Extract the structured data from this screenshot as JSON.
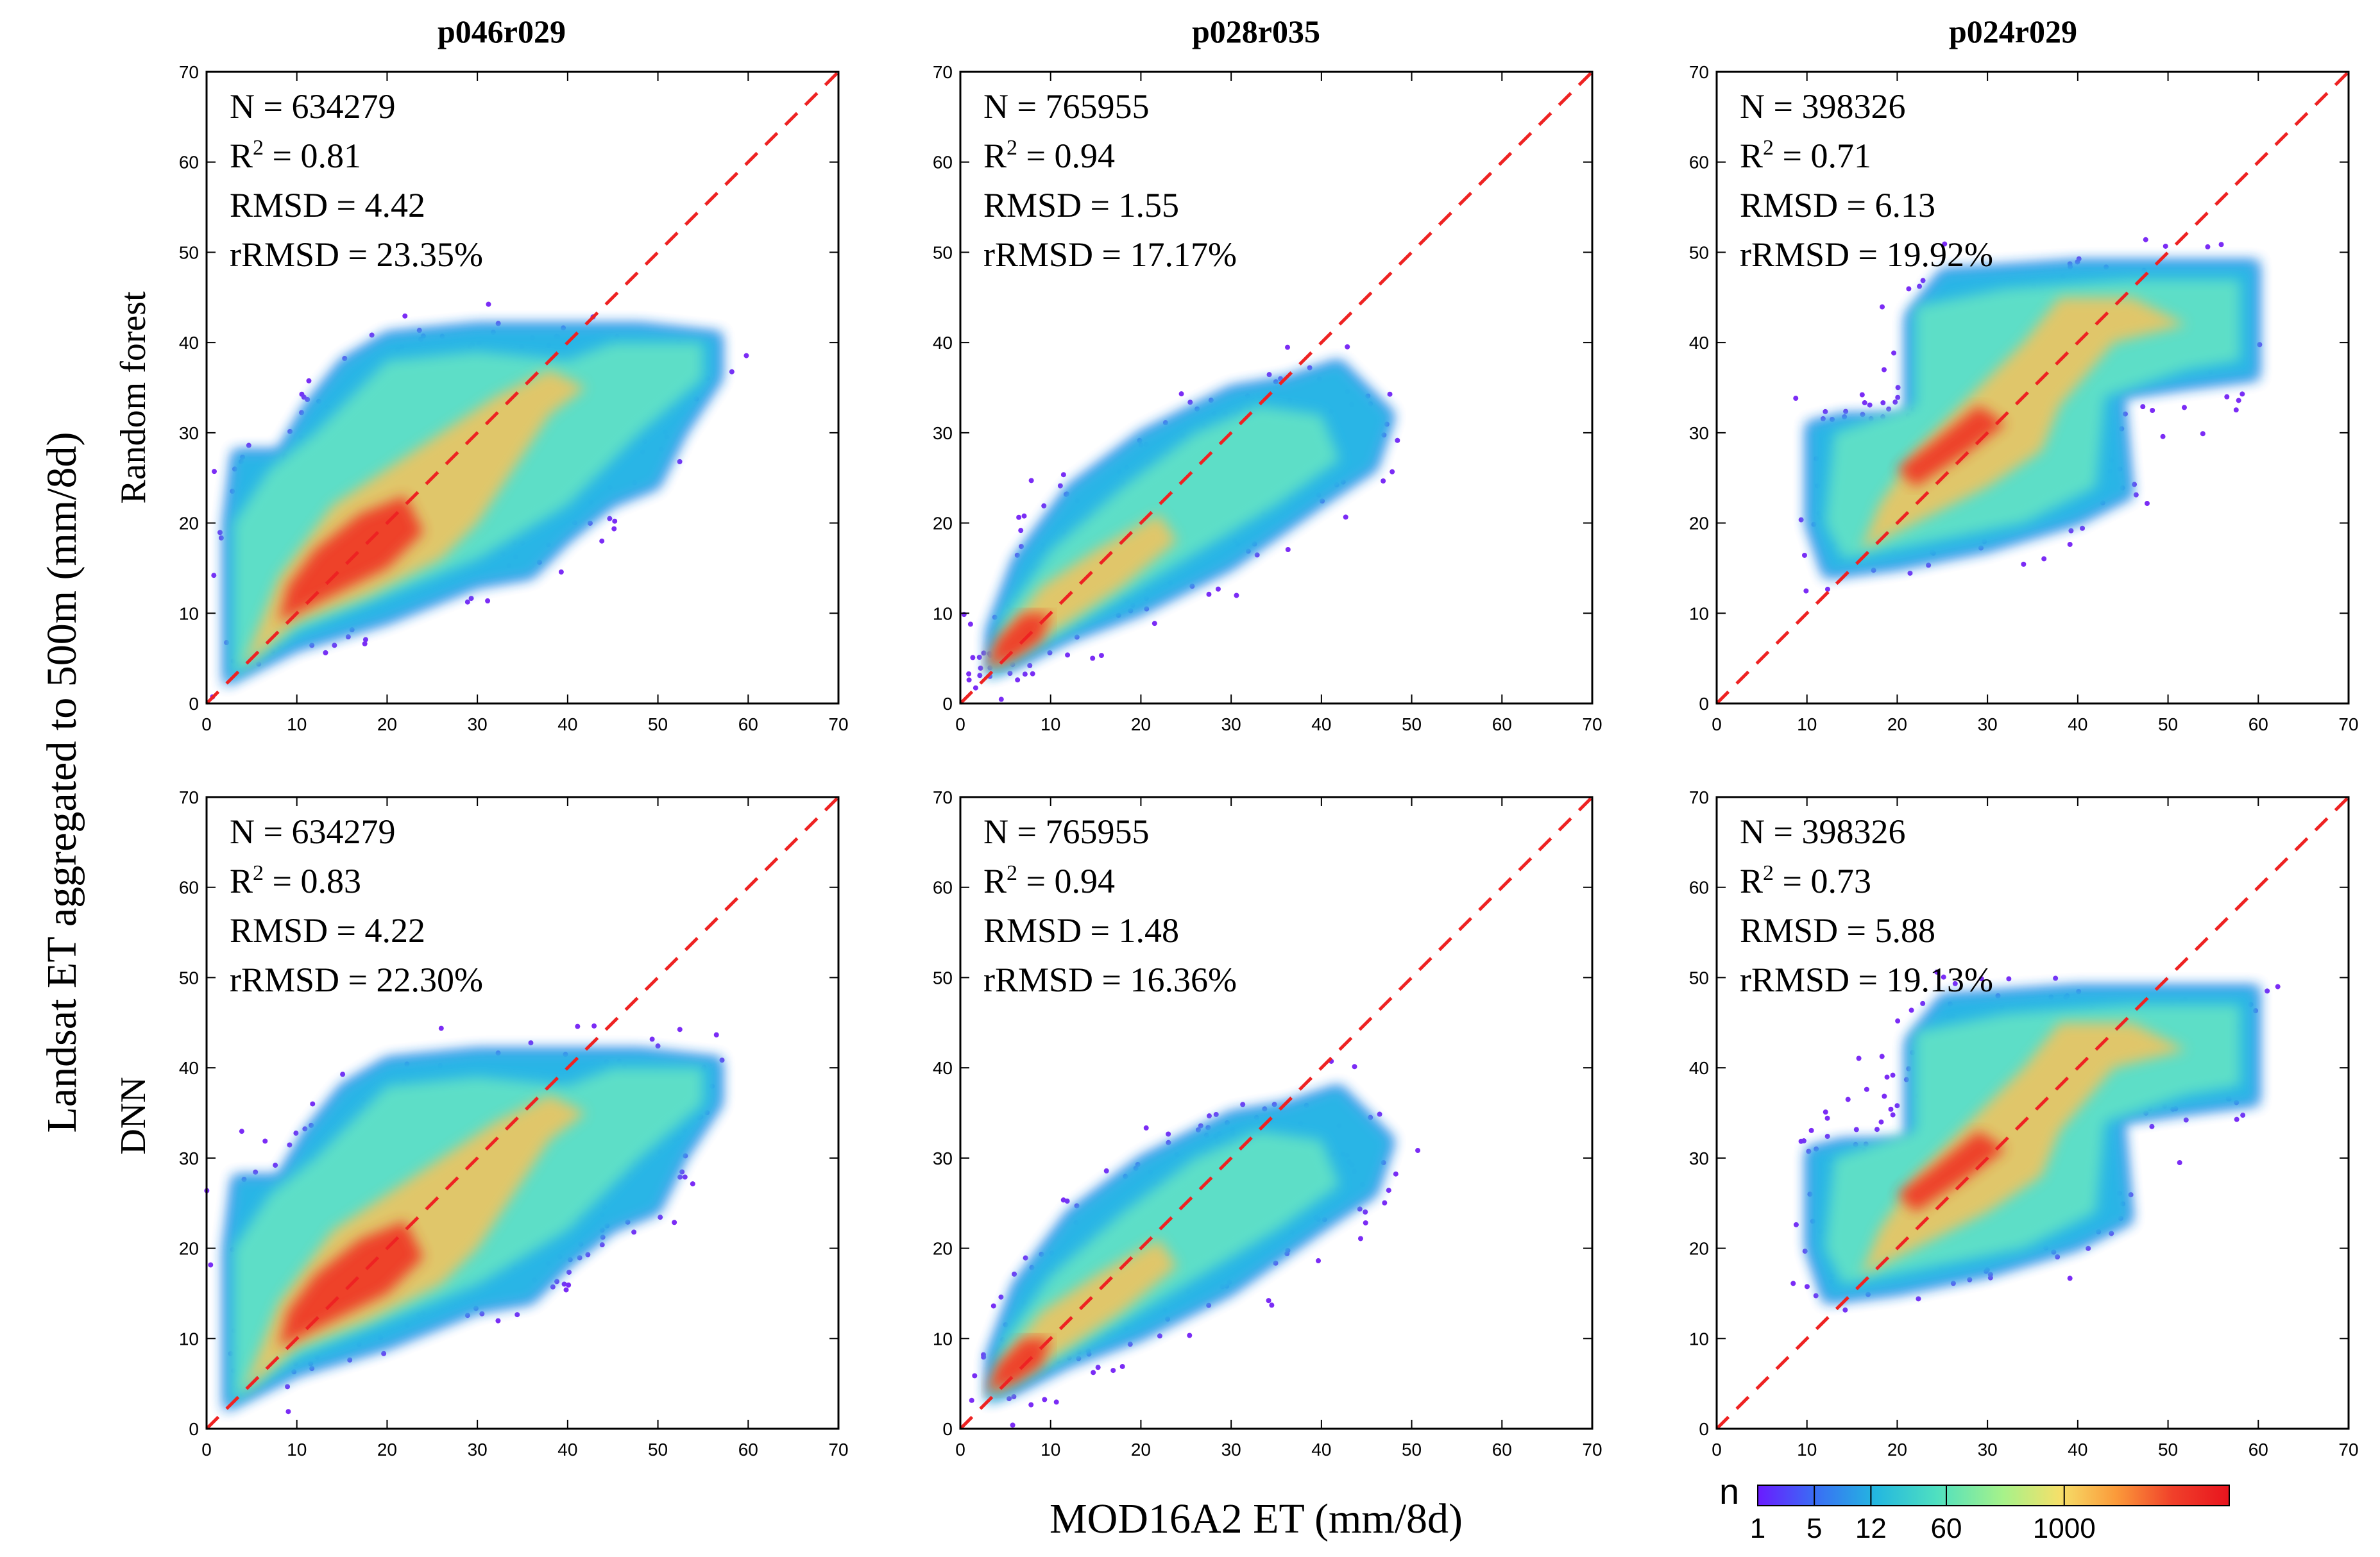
{
  "figure": {
    "ylabel": "Landsat ET aggregated to 500m (mm/8d)",
    "xlabel": "MOD16A2 ET (mm/8d)",
    "columns": [
      "p046r029",
      "p028r035",
      "p024r029"
    ],
    "rows": [
      "Random forest",
      "DNN"
    ],
    "colorbar": {
      "label": "n",
      "ticks": [
        "1",
        "5",
        "12",
        "60",
        "1000"
      ],
      "colors": [
        "#6a1bff",
        "#3a6cf5",
        "#23b7e0",
        "#4fe0c0",
        "#a6f28a",
        "#f5e06a",
        "#fb9a3a",
        "#f0402a",
        "#e8141e"
      ]
    },
    "reference_line_color": "#ee2222"
  },
  "chart_data": [
    {
      "type": "scatter",
      "row": "Random forest",
      "column": "p046r029",
      "xlim": [
        0,
        70
      ],
      "ylim": [
        0,
        70
      ],
      "ticks": [
        0,
        10,
        20,
        30,
        40,
        50,
        60,
        70
      ],
      "stats": {
        "N": "N = 634279",
        "R2_prefix": "R",
        "R2_sup": "2",
        "R2_value": "= 0.81",
        "RMSD": "RMSD = 4.42",
        "rRMSD": "rRMSD = 23.35%"
      }
    },
    {
      "type": "scatter",
      "row": "Random forest",
      "column": "p028r035",
      "xlim": [
        0,
        70
      ],
      "ylim": [
        0,
        70
      ],
      "ticks": [
        0,
        10,
        20,
        30,
        40,
        50,
        60,
        70
      ],
      "stats": {
        "N": "N = 765955",
        "R2_prefix": "R",
        "R2_sup": "2",
        "R2_value": "= 0.94",
        "RMSD": "RMSD = 1.55",
        "rRMSD": "rRMSD = 17.17%"
      }
    },
    {
      "type": "scatter",
      "row": "Random forest",
      "column": "p024r029",
      "xlim": [
        0,
        70
      ],
      "ylim": [
        0,
        70
      ],
      "ticks": [
        0,
        10,
        20,
        30,
        40,
        50,
        60,
        70
      ],
      "stats": {
        "N": "N = 398326",
        "R2_prefix": "R",
        "R2_sup": "2",
        "R2_value": "= 0.71",
        "RMSD": "RMSD = 6.13",
        "rRMSD": "rRMSD = 19.92%"
      }
    },
    {
      "type": "scatter",
      "row": "DNN",
      "column": "p046r029",
      "xlim": [
        0,
        70
      ],
      "ylim": [
        0,
        70
      ],
      "ticks": [
        0,
        10,
        20,
        30,
        40,
        50,
        60,
        70
      ],
      "stats": {
        "N": "N = 634279",
        "R2_prefix": "R",
        "R2_sup": "2",
        "R2_value": "= 0.83",
        "RMSD": "RMSD = 4.22",
        "rRMSD": "rRMSD = 22.30%"
      }
    },
    {
      "type": "scatter",
      "row": "DNN",
      "column": "p028r035",
      "xlim": [
        0,
        70
      ],
      "ylim": [
        0,
        70
      ],
      "ticks": [
        0,
        10,
        20,
        30,
        40,
        50,
        60,
        70
      ],
      "stats": {
        "N": "N = 765955",
        "R2_prefix": "R",
        "R2_sup": "2",
        "R2_value": "= 0.94",
        "RMSD": "RMSD = 1.48",
        "rRMSD": "rRMSD = 16.36%"
      }
    },
    {
      "type": "scatter",
      "row": "DNN",
      "column": "p024r029",
      "xlim": [
        0,
        70
      ],
      "ylim": [
        0,
        70
      ],
      "ticks": [
        0,
        10,
        20,
        30,
        40,
        50,
        60,
        70
      ],
      "stats": {
        "N": "N = 398326",
        "R2_prefix": "R",
        "R2_sup": "2",
        "R2_value": "= 0.73",
        "RMSD": "RMSD = 5.88",
        "rRMSD": "rRMSD = 19.13%"
      }
    }
  ],
  "density_shapes": {
    "p046r029": [
      {
        "level": "outline",
        "polygon": [
          [
            2,
            2
          ],
          [
            4,
            3
          ],
          [
            10,
            6
          ],
          [
            20,
            9
          ],
          [
            30,
            13
          ],
          [
            36,
            14
          ],
          [
            40,
            18
          ],
          [
            45,
            22
          ],
          [
            50,
            24
          ],
          [
            53,
            30
          ],
          [
            57,
            36
          ],
          [
            57,
            41
          ],
          [
            48,
            42
          ],
          [
            40,
            42
          ],
          [
            30,
            42
          ],
          [
            20,
            41
          ],
          [
            15,
            38
          ],
          [
            11,
            33
          ],
          [
            8,
            28
          ],
          [
            3,
            28
          ],
          [
            2,
            20
          ],
          [
            2,
            10
          ]
        ]
      },
      {
        "level": "mid",
        "polygon": [
          [
            3,
            3
          ],
          [
            10,
            8
          ],
          [
            20,
            12
          ],
          [
            30,
            16
          ],
          [
            40,
            22
          ],
          [
            48,
            30
          ],
          [
            55,
            36
          ],
          [
            55,
            40
          ],
          [
            45,
            40
          ],
          [
            40,
            38
          ],
          [
            30,
            39
          ],
          [
            20,
            38
          ],
          [
            12,
            30
          ],
          [
            7,
            26
          ],
          [
            3,
            20
          ]
        ]
      },
      {
        "level": "high",
        "polygon": [
          [
            4,
            4
          ],
          [
            10,
            9
          ],
          [
            18,
            12
          ],
          [
            26,
            16
          ],
          [
            30,
            20
          ],
          [
            34,
            26
          ],
          [
            38,
            32
          ],
          [
            42,
            35
          ],
          [
            38,
            37
          ],
          [
            32,
            34
          ],
          [
            26,
            30
          ],
          [
            20,
            26
          ],
          [
            14,
            22
          ],
          [
            8,
            14
          ]
        ]
      },
      {
        "level": "peak",
        "polygon": [
          [
            8,
            9
          ],
          [
            14,
            12
          ],
          [
            20,
            15
          ],
          [
            24,
            19
          ],
          [
            22,
            23
          ],
          [
            17,
            21
          ],
          [
            12,
            17
          ],
          [
            9,
            13
          ]
        ]
      }
    ],
    "p028r035": [
      {
        "level": "outline",
        "polygon": [
          [
            3,
            3
          ],
          [
            6,
            4
          ],
          [
            12,
            7
          ],
          [
            20,
            10
          ],
          [
            30,
            15
          ],
          [
            40,
            22
          ],
          [
            46,
            26
          ],
          [
            48,
            32
          ],
          [
            42,
            38
          ],
          [
            36,
            36
          ],
          [
            30,
            35
          ],
          [
            26,
            33
          ],
          [
            20,
            30
          ],
          [
            12,
            24
          ],
          [
            6,
            16
          ],
          [
            3,
            8
          ]
        ]
      },
      {
        "level": "mid",
        "polygon": [
          [
            3,
            3
          ],
          [
            8,
            6
          ],
          [
            15,
            10
          ],
          [
            25,
            16
          ],
          [
            35,
            22
          ],
          [
            42,
            27
          ],
          [
            40,
            32
          ],
          [
            33,
            33
          ],
          [
            26,
            30
          ],
          [
            18,
            24
          ],
          [
            10,
            17
          ],
          [
            5,
            10
          ]
        ]
      },
      {
        "level": "high",
        "polygon": [
          [
            3,
            4
          ],
          [
            7,
            6
          ],
          [
            12,
            9
          ],
          [
            18,
            13
          ],
          [
            24,
            18
          ],
          [
            22,
            21
          ],
          [
            15,
            17
          ],
          [
            9,
            13
          ],
          [
            5,
            8
          ]
        ]
      },
      {
        "level": "peak",
        "polygon": [
          [
            3,
            4
          ],
          [
            6,
            5
          ],
          [
            9,
            7
          ],
          [
            10,
            10
          ],
          [
            7,
            10
          ],
          [
            4,
            7
          ]
        ]
      }
    ],
    "p024r029": [
      {
        "level": "outline",
        "polygon": [
          [
            12,
            14
          ],
          [
            20,
            15
          ],
          [
            30,
            17
          ],
          [
            40,
            20
          ],
          [
            46,
            23
          ],
          [
            45,
            34
          ],
          [
            52,
            35
          ],
          [
            60,
            36
          ],
          [
            60,
            49
          ],
          [
            50,
            49
          ],
          [
            40,
            49
          ],
          [
            25,
            48
          ],
          [
            21,
            43
          ],
          [
            21,
            32
          ],
          [
            14,
            32
          ],
          [
            10,
            31
          ],
          [
            10,
            20
          ]
        ]
      },
      {
        "level": "mid",
        "polygon": [
          [
            14,
            16
          ],
          [
            24,
            18
          ],
          [
            34,
            20
          ],
          [
            42,
            24
          ],
          [
            43,
            34
          ],
          [
            52,
            37
          ],
          [
            58,
            38
          ],
          [
            58,
            47
          ],
          [
            46,
            47
          ],
          [
            32,
            46
          ],
          [
            22,
            44
          ],
          [
            22,
            33
          ],
          [
            13,
            30
          ],
          [
            12,
            20
          ]
        ]
      },
      {
        "level": "high",
        "polygon": [
          [
            16,
            17
          ],
          [
            22,
            20
          ],
          [
            30,
            24
          ],
          [
            36,
            28
          ],
          [
            38,
            33
          ],
          [
            44,
            40
          ],
          [
            52,
            42
          ],
          [
            46,
            45
          ],
          [
            38,
            45
          ],
          [
            34,
            40
          ],
          [
            28,
            34
          ],
          [
            22,
            28
          ],
          [
            18,
            22
          ]
        ]
      },
      {
        "level": "peak",
        "polygon": [
          [
            22,
            24
          ],
          [
            28,
            28
          ],
          [
            32,
            31
          ],
          [
            29,
            33
          ],
          [
            24,
            29
          ],
          [
            20,
            26
          ]
        ]
      }
    ]
  }
}
